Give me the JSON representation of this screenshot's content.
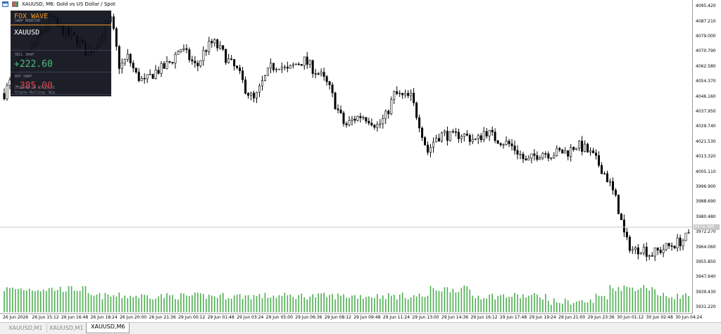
{
  "window": {
    "title": "XAUUSD, M6:  Gold vs US Dollar / Spot"
  },
  "panel": {
    "brand": "FOX WAVE",
    "subtitle": "SWAP MONITOR",
    "symbol": "XAUUSD",
    "sell_label": "SELL SWAP",
    "sell_value": "+222.60",
    "buy_label": "BUY SWAP",
    "buy_value": "-385.00",
    "footer_time": "2026.06.30 03:11:51",
    "footer_note": "Triple Rolling: Wip"
  },
  "colors": {
    "sell": "#4cc07a",
    "buy": "#e0474c",
    "brand": "#f0962a",
    "volume": "#4caf50"
  },
  "chart_data": {
    "type": "candlestick",
    "symbol": "XAUUSD",
    "timeframe": "M6",
    "ylim": [
      3927.8,
      4099.0
    ],
    "y_ticks": [
      "4095.420",
      "4087.210",
      "4079.000",
      "4070.790",
      "4062.580",
      "4054.370",
      "4046.160",
      "4037.950",
      "4029.740",
      "4021.530",
      "4013.320",
      "4005.110",
      "3996.900",
      "3988.690",
      "3980.480",
      "3972.270",
      "3964.060",
      "3955.850",
      "3947.640",
      "3939.430",
      "3931.220"
    ],
    "x_ticks": [
      "26 Jun 2026",
      "26 Jun 15:12",
      "26 Jun 16:48",
      "26 Jun 18:24",
      "26 Jun 20:00",
      "26 Jun 21:36",
      "29 Jun 00:12",
      "29 Jun 01:48",
      "29 Jun 03:24",
      "29 Jun 05:00",
      "29 Jun 06:36",
      "29 Jun 08:12",
      "29 Jun 09:48",
      "29 Jun 11:24",
      "29 Jun 13:00",
      "29 Jun 14:36",
      "29 Jun 16:12",
      "29 Jun 17:48",
      "29 Jun 19:24",
      "29 Jun 21:00",
      "29 Jun 23:36",
      "30 Jun 01:12",
      "30 Jun 02:48",
      "30 Jun 04:24"
    ],
    "current_price_label": "3970.380",
    "current_price": 3970.38,
    "close_path": [
      [
        0,
        4048
      ],
      [
        6,
        4065
      ],
      [
        10,
        4072
      ],
      [
        14,
        4082
      ],
      [
        17,
        4090
      ],
      [
        19,
        4085
      ],
      [
        23,
        4080
      ],
      [
        27,
        4077
      ],
      [
        30,
        4070
      ],
      [
        33,
        4074
      ],
      [
        36,
        4082
      ],
      [
        39,
        4088
      ],
      [
        42,
        4062
      ],
      [
        45,
        4068
      ],
      [
        48,
        4058
      ],
      [
        51,
        4054
      ],
      [
        55,
        4060
      ],
      [
        58,
        4062
      ],
      [
        61,
        4066
      ],
      [
        64,
        4073
      ],
      [
        67,
        4068
      ],
      [
        70,
        4062
      ],
      [
        73,
        4072
      ],
      [
        76,
        4076
      ],
      [
        79,
        4071
      ],
      [
        82,
        4065
      ],
      [
        85,
        4060
      ],
      [
        88,
        4050
      ],
      [
        91,
        4044
      ],
      [
        94,
        4054
      ],
      [
        97,
        4062
      ],
      [
        100,
        4064
      ],
      [
        103,
        4060
      ],
      [
        106,
        4064
      ],
      [
        109,
        4066
      ],
      [
        112,
        4062
      ],
      [
        115,
        4058
      ],
      [
        118,
        4052
      ],
      [
        121,
        4040
      ],
      [
        124,
        4030
      ],
      [
        127,
        4034
      ],
      [
        130,
        4036
      ],
      [
        133,
        4034
      ],
      [
        136,
        4030
      ],
      [
        139,
        4036
      ],
      [
        142,
        4048
      ],
      [
        145,
        4046
      ],
      [
        148,
        4046
      ],
      [
        151,
        4032
      ],
      [
        154,
        4016
      ],
      [
        157,
        4024
      ],
      [
        160,
        4026
      ],
      [
        163,
        4024
      ],
      [
        166,
        4026
      ],
      [
        169,
        4024
      ],
      [
        172,
        4022
      ],
      [
        175,
        4028
      ],
      [
        178,
        4024
      ],
      [
        181,
        4022
      ],
      [
        184,
        4020
      ],
      [
        187,
        4016
      ],
      [
        190,
        4010
      ],
      [
        193,
        4014
      ],
      [
        196,
        4016
      ],
      [
        199,
        4015
      ],
      [
        202,
        4016
      ],
      [
        205,
        4016
      ],
      [
        208,
        4020
      ],
      [
        211,
        4018
      ],
      [
        214,
        4014
      ],
      [
        217,
        4008
      ],
      [
        220,
        4000
      ],
      [
        223,
        3988
      ],
      [
        226,
        3968
      ],
      [
        229,
        3962
      ],
      [
        232,
        3964
      ],
      [
        235,
        3960
      ],
      [
        238,
        3962
      ],
      [
        241,
        3964
      ],
      [
        244,
        3966
      ],
      [
        247,
        3968
      ],
      [
        249,
        3970
      ]
    ],
    "volume_relative": "high on 26 Jun, lower through 29 Jun, spikes near 29 Jun 13:00 and 30 Jun 01:12"
  },
  "tabs": [
    {
      "label": "XAUUSD,M1"
    },
    {
      "label": "XAUUSD,M1"
    },
    {
      "label": "XAUUSD,M6"
    }
  ]
}
